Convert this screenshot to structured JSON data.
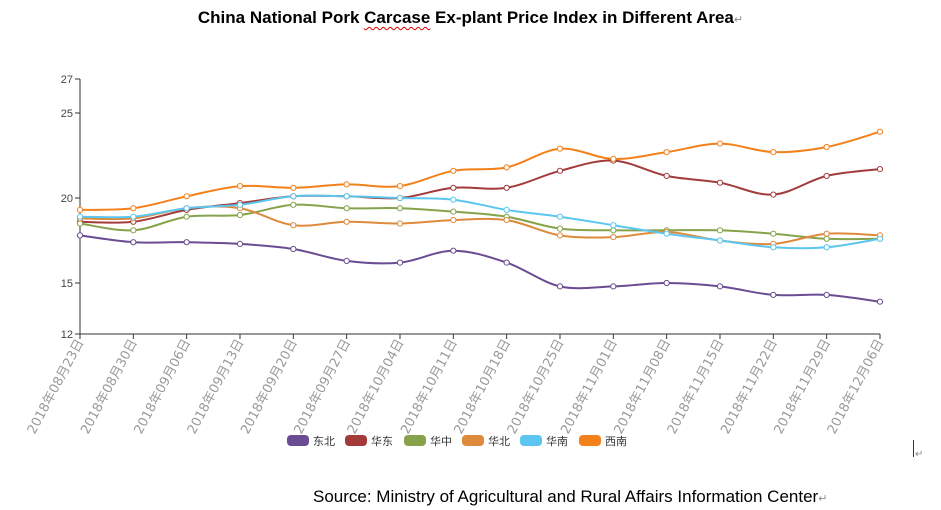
{
  "title": {
    "before": "China National Pork ",
    "squiggle": "Carcase",
    "after": " Ex-plant Price Index in Different Area",
    "mark": "↵"
  },
  "source": {
    "text": "Source: Ministry of Agricultural and Rural Affairs Information Center",
    "mark": "↵"
  },
  "chart_data": {
    "type": "line",
    "title": "China National Pork Carcase Ex-plant Price Index in Different Area",
    "categories": [
      "2018年08月23日",
      "2018年08月30日",
      "2018年09月06日",
      "2018年09月13日",
      "2018年09月20日",
      "2018年09月27日",
      "2018年10月04日",
      "2018年10月11日",
      "2018年10月18日",
      "2018年10月25日",
      "2018年11月01日",
      "2018年11月08日",
      "2018年11月15日",
      "2018年11月22日",
      "2018年11月29日",
      "2018年12月06日"
    ],
    "yticks": [
      12,
      15,
      20,
      25,
      27
    ],
    "ylim": [
      12,
      27
    ],
    "grid": false,
    "legend_position": "bottom",
    "series": [
      {
        "name": "东北",
        "color": "#6a4c93",
        "values": [
          17.8,
          17.4,
          17.4,
          17.3,
          17.0,
          16.3,
          16.2,
          16.9,
          16.2,
          14.8,
          14.8,
          15.0,
          14.8,
          14.3,
          14.3,
          13.9
        ]
      },
      {
        "name": "华东",
        "color": "#a33b3b",
        "values": [
          18.6,
          18.6,
          19.3,
          19.7,
          20.1,
          20.1,
          20.0,
          20.6,
          20.6,
          21.6,
          22.2,
          21.3,
          20.9,
          20.2,
          21.3,
          21.7
        ]
      },
      {
        "name": "华中",
        "color": "#86a34b",
        "values": [
          18.5,
          18.1,
          18.9,
          19.0,
          19.6,
          19.4,
          19.4,
          19.2,
          18.9,
          18.2,
          18.1,
          18.1,
          18.1,
          17.9,
          17.6,
          17.6
        ]
      },
      {
        "name": "华北",
        "color": "#de8a3d",
        "values": [
          18.8,
          18.8,
          19.4,
          19.4,
          18.4,
          18.6,
          18.5,
          18.7,
          18.7,
          17.8,
          17.7,
          18.0,
          17.5,
          17.3,
          17.9,
          17.8
        ]
      },
      {
        "name": "华南",
        "color": "#5bc6f0",
        "values": [
          18.9,
          18.9,
          19.4,
          19.6,
          20.1,
          20.1,
          20.0,
          19.9,
          19.3,
          18.9,
          18.4,
          17.9,
          17.5,
          17.1,
          17.1,
          17.6
        ]
      },
      {
        "name": "西南",
        "color": "#f3811b",
        "values": [
          19.3,
          19.4,
          20.1,
          20.7,
          20.6,
          20.8,
          20.7,
          21.6,
          21.8,
          22.9,
          22.3,
          22.7,
          23.2,
          22.7,
          23.0,
          23.9
        ]
      }
    ]
  }
}
